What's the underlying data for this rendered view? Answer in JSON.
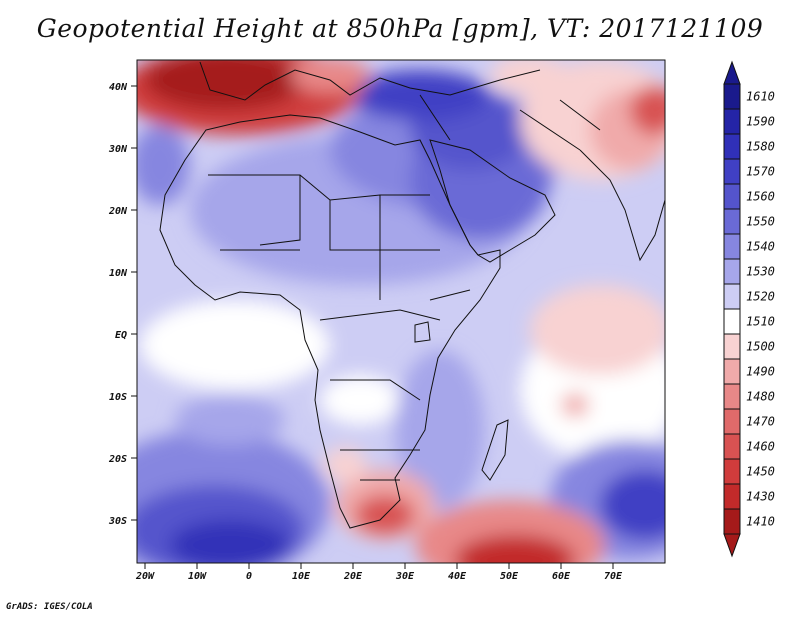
{
  "title": "Geopotential Height at 850hPa [gpm], VT: 2017121109",
  "credit": "GrADS: IGES/COLA",
  "map": {
    "lat_labels": [
      "40N",
      "30N",
      "20N",
      "10N",
      "EQ",
      "10S",
      "20S",
      "30S"
    ],
    "lon_labels": [
      "20W",
      "10W",
      "0",
      "10E",
      "20E",
      "30E",
      "40E",
      "50E",
      "60E",
      "70E"
    ]
  },
  "colorbar": {
    "top_triangle_color": "#1a1a8c",
    "bottom_triangle_color": "#a51a1a",
    "levels": [
      {
        "label": "1610",
        "color": "#1a1a8c"
      },
      {
        "label": "1590",
        "color": "#2424a6"
      },
      {
        "label": "1580",
        "color": "#3030b8"
      },
      {
        "label": "1570",
        "color": "#4040c4"
      },
      {
        "label": "1560",
        "color": "#5454cc"
      },
      {
        "label": "1550",
        "color": "#6a6ad6"
      },
      {
        "label": "1540",
        "color": "#8686e0"
      },
      {
        "label": "1530",
        "color": "#a6a6ea"
      },
      {
        "label": "1520",
        "color": "#cdcdf4"
      },
      {
        "label": "1510",
        "color": "#ffffff"
      },
      {
        "label": "1500",
        "color": "#f8d2d2"
      },
      {
        "label": "1490",
        "color": "#f0aaaa"
      },
      {
        "label": "1480",
        "color": "#e88888"
      },
      {
        "label": "1470",
        "color": "#e06a6a"
      },
      {
        "label": "1460",
        "color": "#d85252"
      },
      {
        "label": "1450",
        "color": "#d03c3c"
      },
      {
        "label": "1430",
        "color": "#c22a2a"
      },
      {
        "label": "1410",
        "color": "#a51a1a"
      }
    ]
  }
}
